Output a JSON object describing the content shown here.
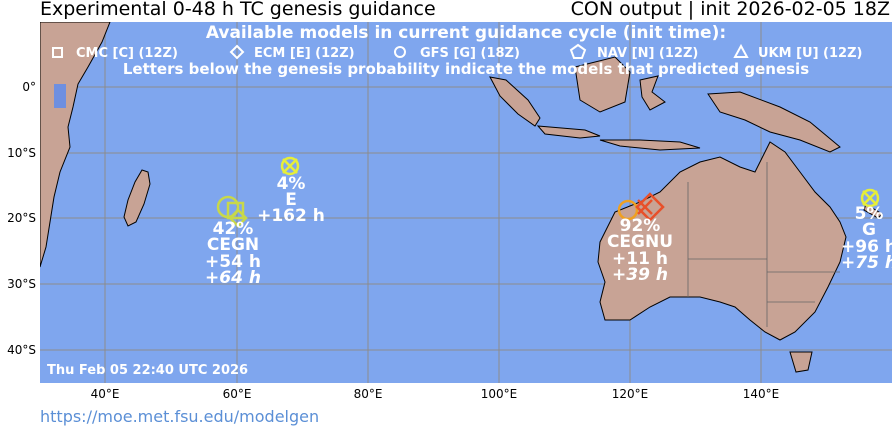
{
  "header": {
    "title_left": "Experimental 0-48 h TC genesis guidance",
    "title_right": "CON output | init 2026-02-05 18Z"
  },
  "legend": {
    "title": "Available models in current guidance cycle (init time):",
    "models": [
      {
        "symbol": "square",
        "label": "CMC [C] (12Z)"
      },
      {
        "symbol": "diamond",
        "label": "ECM [E] (12Z)"
      },
      {
        "symbol": "circle",
        "label": "GFS [G] (18Z)"
      },
      {
        "symbol": "pentagon",
        "label": "NAV [N] (12Z)"
      },
      {
        "symbol": "triangle",
        "label": "UKM [U] (12Z)"
      }
    ],
    "note": "Letters below the genesis probability indicate the models that predicted genesis"
  },
  "map": {
    "ocean_color": "#7fa6ee",
    "land_color": "#c8a395",
    "grid_color": "#8c8c8c",
    "lon_ticks": [
      "40°E",
      "60°E",
      "80°E",
      "100°E",
      "120°E",
      "140°E"
    ],
    "lat_ticks": [
      "0°",
      "10°S",
      "20°S",
      "30°S",
      "40°S"
    ],
    "timestamp": "Thu Feb 05 22:40 UTC 2026"
  },
  "systems": [
    {
      "id": "sys1",
      "prob": "4%",
      "models": "E",
      "time1": "+162 h",
      "time2": "",
      "color": "#e6ee3a"
    },
    {
      "id": "sys2",
      "prob": "42%",
      "models": "CEGN",
      "time1": "+54 h",
      "time2": "+64 h",
      "color": "#c8d84a"
    },
    {
      "id": "sys3",
      "prob": "92%",
      "models": "CEGNU",
      "time1": "+11 h",
      "time2": "+39 h",
      "color": "#e8502a"
    },
    {
      "id": "sys4",
      "prob": "5%",
      "models": "G",
      "time1": "+96 h",
      "time2": "+75 h",
      "color": "#e6ee3a"
    }
  ],
  "footer": {
    "url": "https://moe.met.fsu.edu/modelgen"
  }
}
